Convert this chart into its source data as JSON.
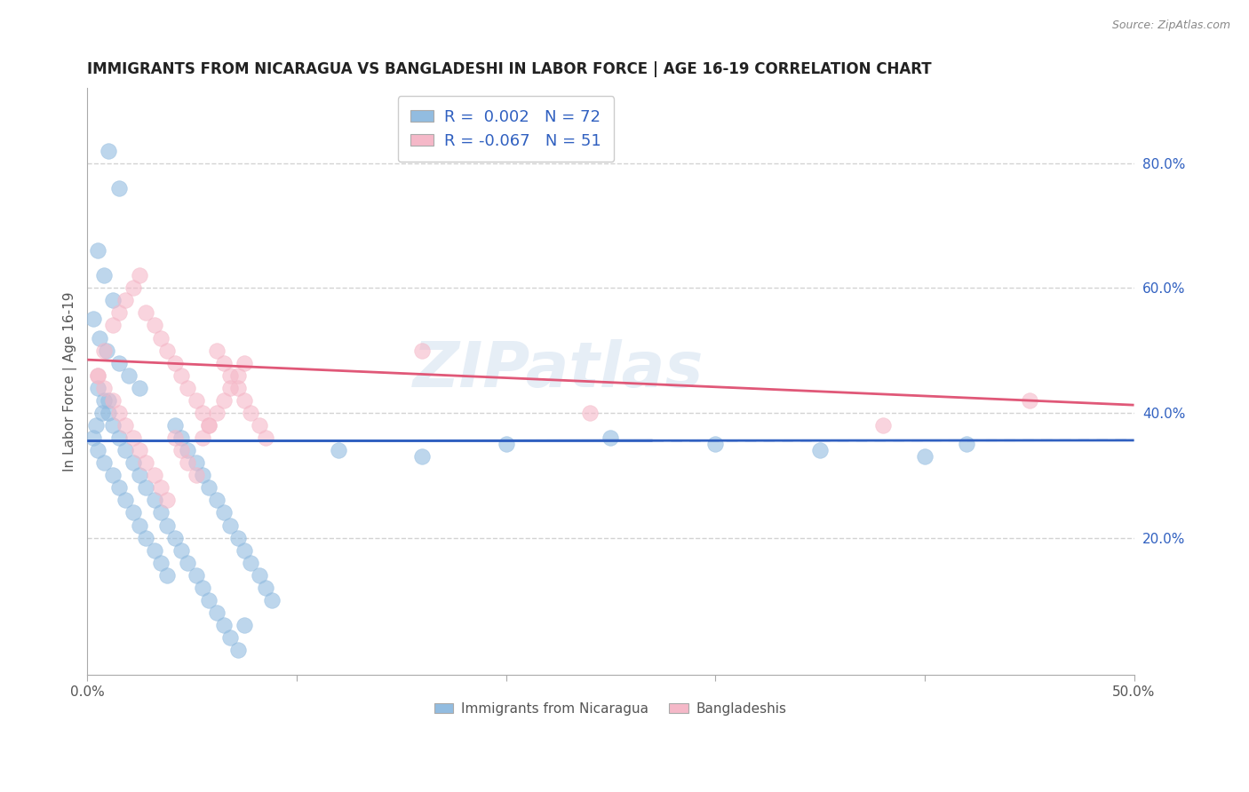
{
  "title": "IMMIGRANTS FROM NICARAGUA VS BANGLADESHI IN LABOR FORCE | AGE 16-19 CORRELATION CHART",
  "source": "Source: ZipAtlas.com",
  "ylabel": "In Labor Force | Age 16-19",
  "xlim": [
    0.0,
    0.5
  ],
  "ylim": [
    -0.02,
    0.92
  ],
  "yticks_right": [
    0.2,
    0.4,
    0.6,
    0.8
  ],
  "yticklabels_right": [
    "20.0%",
    "40.0%",
    "60.0%",
    "80.0%"
  ],
  "blue_color": "#92bce0",
  "pink_color": "#f5b8c8",
  "blue_line_color": "#3060c0",
  "pink_line_color": "#e05878",
  "dashed_line_color": "#3060c0",
  "legend_text_color": "#3060c0",
  "R_blue": 0.002,
  "N_blue": 72,
  "R_pink": -0.067,
  "N_pink": 51,
  "watermark": "ZIPatlas",
  "blue_line_y_intercept": 0.355,
  "blue_line_slope": 0.002,
  "pink_line_y_intercept": 0.485,
  "pink_line_slope": -0.145,
  "dashed_line_y": 0.355,
  "blue_scatter_x": [
    0.01,
    0.015,
    0.005,
    0.008,
    0.012,
    0.003,
    0.006,
    0.009,
    0.015,
    0.02,
    0.025,
    0.01,
    0.007,
    0.004,
    0.003,
    0.005,
    0.008,
    0.012,
    0.015,
    0.018,
    0.022,
    0.025,
    0.028,
    0.032,
    0.035,
    0.038,
    0.042,
    0.045,
    0.048,
    0.052,
    0.055,
    0.058,
    0.062,
    0.065,
    0.068,
    0.072,
    0.075,
    0.078,
    0.082,
    0.085,
    0.088,
    0.005,
    0.008,
    0.01,
    0.012,
    0.015,
    0.018,
    0.022,
    0.025,
    0.028,
    0.032,
    0.035,
    0.038,
    0.042,
    0.045,
    0.048,
    0.052,
    0.055,
    0.058,
    0.062,
    0.065,
    0.068,
    0.072,
    0.075,
    0.12,
    0.16,
    0.2,
    0.25,
    0.3,
    0.35,
    0.4,
    0.42
  ],
  "blue_scatter_y": [
    0.82,
    0.76,
    0.66,
    0.62,
    0.58,
    0.55,
    0.52,
    0.5,
    0.48,
    0.46,
    0.44,
    0.42,
    0.4,
    0.38,
    0.36,
    0.34,
    0.32,
    0.3,
    0.28,
    0.26,
    0.24,
    0.22,
    0.2,
    0.18,
    0.16,
    0.14,
    0.38,
    0.36,
    0.34,
    0.32,
    0.3,
    0.28,
    0.26,
    0.24,
    0.22,
    0.2,
    0.18,
    0.16,
    0.14,
    0.12,
    0.1,
    0.44,
    0.42,
    0.4,
    0.38,
    0.36,
    0.34,
    0.32,
    0.3,
    0.28,
    0.26,
    0.24,
    0.22,
    0.2,
    0.18,
    0.16,
    0.14,
    0.12,
    0.1,
    0.08,
    0.06,
    0.04,
    0.02,
    0.06,
    0.34,
    0.33,
    0.35,
    0.36,
    0.35,
    0.34,
    0.33,
    0.35
  ],
  "pink_scatter_x": [
    0.005,
    0.008,
    0.012,
    0.015,
    0.018,
    0.022,
    0.025,
    0.028,
    0.032,
    0.035,
    0.038,
    0.042,
    0.045,
    0.048,
    0.052,
    0.055,
    0.058,
    0.062,
    0.065,
    0.068,
    0.072,
    0.075,
    0.078,
    0.082,
    0.085,
    0.005,
    0.008,
    0.012,
    0.015,
    0.018,
    0.022,
    0.025,
    0.028,
    0.032,
    0.035,
    0.038,
    0.042,
    0.045,
    0.048,
    0.052,
    0.055,
    0.058,
    0.062,
    0.065,
    0.068,
    0.072,
    0.075,
    0.16,
    0.24,
    0.38,
    0.45
  ],
  "pink_scatter_y": [
    0.46,
    0.5,
    0.54,
    0.56,
    0.58,
    0.6,
    0.62,
    0.56,
    0.54,
    0.52,
    0.5,
    0.48,
    0.46,
    0.44,
    0.42,
    0.4,
    0.38,
    0.5,
    0.48,
    0.46,
    0.44,
    0.42,
    0.4,
    0.38,
    0.36,
    0.46,
    0.44,
    0.42,
    0.4,
    0.38,
    0.36,
    0.34,
    0.32,
    0.3,
    0.28,
    0.26,
    0.36,
    0.34,
    0.32,
    0.3,
    0.36,
    0.38,
    0.4,
    0.42,
    0.44,
    0.46,
    0.48,
    0.5,
    0.4,
    0.38,
    0.42
  ],
  "background_color": "#ffffff",
  "grid_color": "#c8c8c8"
}
